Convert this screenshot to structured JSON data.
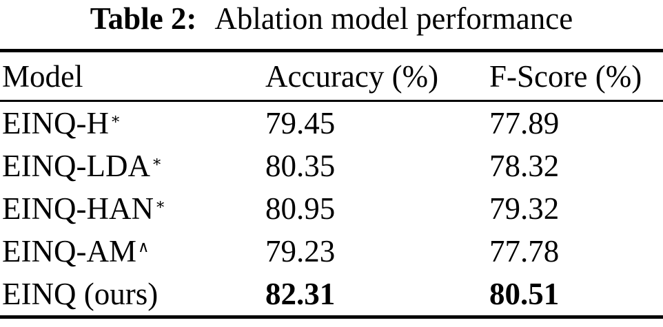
{
  "caption": {
    "label": "Table 2:",
    "text": "Ablation model performance"
  },
  "table": {
    "columns": [
      "Model",
      "Accuracy (%)",
      "F-Score (%)"
    ],
    "rows": [
      {
        "model": "EINQ-H",
        "sup": "∗",
        "accuracy": "79.45",
        "fscore": "77.89"
      },
      {
        "model": "EINQ-LDA",
        "sup": "∗",
        "accuracy": "80.35",
        "fscore": "78.32"
      },
      {
        "model": "EINQ-HAN",
        "sup": "∗",
        "accuracy": "80.95",
        "fscore": "79.32"
      },
      {
        "model": "EINQ-AM",
        "sup": "∧",
        "accuracy": "79.23",
        "fscore": "77.78"
      },
      {
        "model": "EINQ (ours)",
        "sup": "",
        "accuracy": "82.31",
        "fscore": "80.51"
      }
    ],
    "best_row_index": 4
  },
  "chart_data": {
    "type": "table",
    "title": "Table 2: Ablation model performance",
    "categories": [
      "EINQ-H*",
      "EINQ-LDA*",
      "EINQ-HAN*",
      "EINQ-AM^",
      "EINQ (ours)"
    ],
    "series": [
      {
        "name": "Accuracy (%)",
        "values": [
          79.45,
          80.35,
          80.95,
          79.23,
          82.31
        ]
      },
      {
        "name": "F-Score (%)",
        "values": [
          77.89,
          78.32,
          79.32,
          77.78,
          80.51
        ]
      }
    ]
  },
  "colors": {
    "text": "#000000",
    "background": "#ffffff",
    "rule": "#000000"
  }
}
